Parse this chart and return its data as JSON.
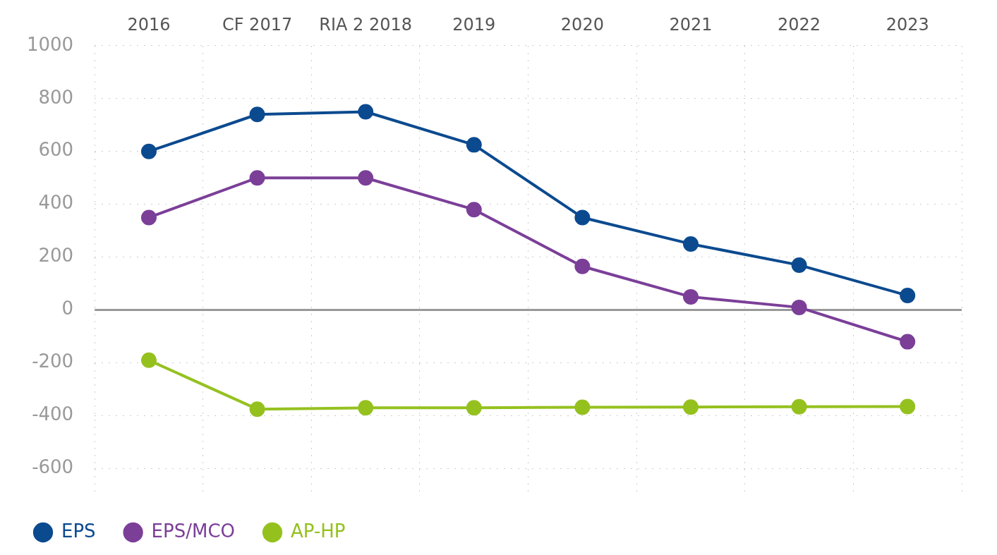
{
  "chart_data": {
    "type": "line",
    "categories": [
      "2016",
      "CF 2017",
      "RIA 2 2018",
      "2019",
      "2020",
      "2021",
      "2022",
      "2023"
    ],
    "series": [
      {
        "name": "EPS",
        "color": "#0b4a8f",
        "values": [
          600,
          740,
          750,
          625,
          350,
          250,
          170,
          55
        ]
      },
      {
        "name": "EPS/MCO",
        "color": "#7b3f98",
        "values": [
          350,
          500,
          500,
          380,
          165,
          50,
          10,
          -120
        ]
      },
      {
        "name": "AP-HP",
        "color": "#95c11f",
        "values": [
          -190,
          -375,
          -370,
          -370,
          -368,
          -367,
          -366,
          -365
        ]
      }
    ],
    "ylim": [
      -700,
      1000
    ],
    "yticks": [
      -600,
      -400,
      -200,
      0,
      200,
      400,
      600,
      800,
      1000
    ],
    "ref_lines": [
      {
        "axis": "y",
        "value": 0,
        "color": "#999999"
      }
    ],
    "grid": true,
    "legend": "bottom left",
    "marker": "circle",
    "line_style": "solid"
  }
}
